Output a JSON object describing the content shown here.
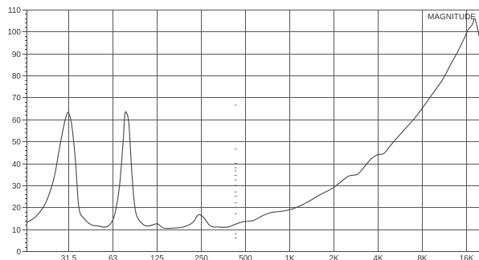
{
  "chart_data": {
    "type": "line",
    "title": "",
    "xlabel": "",
    "ylabel": "",
    "x_scale": "log",
    "xlim": [
      16.3,
      19500
    ],
    "ylim": [
      0,
      110
    ],
    "grid": true,
    "x_ticks": [
      {
        "value": 31.5,
        "label": "31.5"
      },
      {
        "value": 63,
        "label": "63"
      },
      {
        "value": 125,
        "label": "125"
      },
      {
        "value": 250,
        "label": "250"
      },
      {
        "value": 500,
        "label": "500"
      },
      {
        "value": 1000,
        "label": "1K"
      },
      {
        "value": 2000,
        "label": "2K"
      },
      {
        "value": 4000,
        "label": "4K"
      },
      {
        "value": 8000,
        "label": "8K"
      },
      {
        "value": 16000,
        "label": "16K"
      }
    ],
    "y_ticks": [
      0,
      10,
      20,
      30,
      40,
      50,
      60,
      70,
      80,
      90,
      100,
      110
    ],
    "series": [
      {
        "name": "MAGNITUDE",
        "x": [
          16.3,
          19,
          22,
          25,
          27,
          29,
          30.5,
          31.5,
          33,
          35,
          37,
          40,
          45,
          50,
          55,
          60,
          65,
          70,
          74,
          76,
          78,
          81,
          85,
          90,
          100,
          110,
          125,
          130,
          140,
          160,
          190,
          220,
          240,
          260,
          290,
          330,
          380,
          420,
          460,
          500,
          570,
          650,
          740,
          840,
          950,
          1080,
          1300,
          1600,
          2000,
          2500,
          2900,
          3200,
          3600,
          4000,
          4400,
          5000,
          6000,
          7000,
          8000,
          9500,
          11000,
          12500,
          14000,
          15500,
          16500,
          17500,
          18200,
          18800,
          19500
        ],
        "y": [
          13,
          16,
          22,
          33,
          45,
          56,
          62,
          63,
          58,
          42,
          20,
          15,
          12,
          11.5,
          11,
          12,
          17,
          30,
          50,
          62,
          63,
          58,
          35,
          18,
          12.5,
          11.5,
          12.5,
          12,
          10.5,
          10.5,
          11,
          13,
          16.5,
          15.5,
          11.5,
          11,
          11,
          12,
          13,
          13.5,
          14,
          16,
          17.5,
          18,
          18.5,
          19.5,
          22,
          25.5,
          29,
          34,
          35,
          38,
          42,
          44,
          44.5,
          49,
          55,
          60,
          65,
          72,
          78,
          85,
          91,
          97,
          101,
          103,
          106,
          103,
          98
        ]
      }
    ],
    "center_markers": {
      "x": 430,
      "y": [
        66.5,
        46.5,
        40,
        38,
        36.5,
        34.5,
        32.5,
        30,
        27,
        25,
        22,
        20,
        17,
        8,
        6
      ]
    }
  }
}
